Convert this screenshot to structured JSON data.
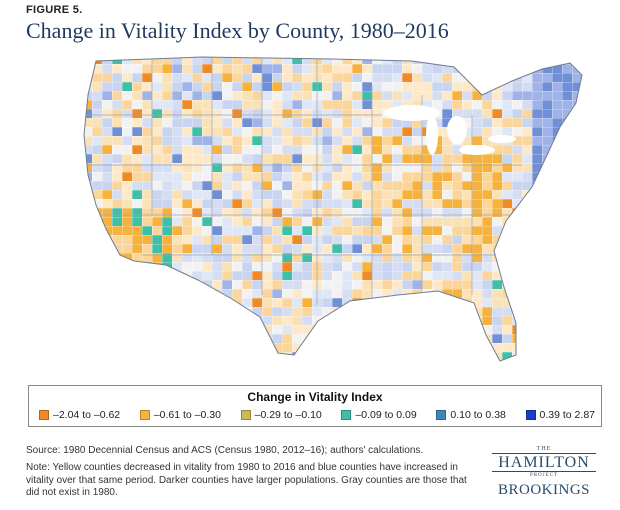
{
  "header": {
    "figure_label": "FIGURE 5.",
    "title": "Change in Vitality Index by County, 1980–2016"
  },
  "map": {
    "subject": "US counties",
    "color_scale": "diverging, orange (decrease) to blue (increase)",
    "gray_meaning": "counties that did not exist in 1980"
  },
  "legend": {
    "title": "Change in Vitality Index",
    "items": [
      {
        "label": "–2.04 to –0.62",
        "color": "#f08a24"
      },
      {
        "label": "–0.61 to –0.30",
        "color": "#f6b23c"
      },
      {
        "label": "–0.29 to –0.10",
        "color": "#c9b95a"
      },
      {
        "label": "–0.09 to 0.09",
        "color": "#3fbfa8"
      },
      {
        "label": "0.10 to 0.38",
        "color": "#3f87b8"
      },
      {
        "label": "0.39 to 2.87",
        "color": "#1e3fc4"
      }
    ]
  },
  "footer": {
    "source": "Source: 1980 Decennial Census and ACS (Census 1980, 2012–16); authors' calculations.",
    "note": "Note: Yellow counties decreased in vitality from 1980 to 2016 and blue counties have increased in vitality over that same period. Darker counties have larger populations. Gray counties are those that did not exist in 1980."
  },
  "logo": {
    "the": "THE",
    "hamilton": "HAMILTON",
    "project": "PROJECT",
    "brookings": "BROOKINGS"
  }
}
